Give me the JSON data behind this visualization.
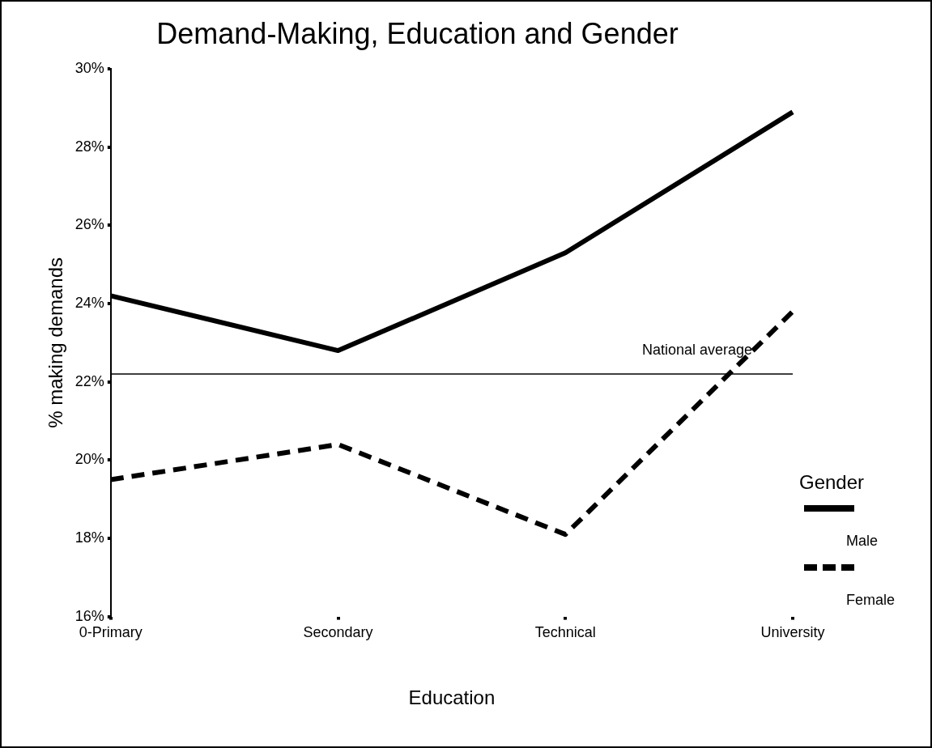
{
  "chart_data": {
    "type": "line",
    "title": "Demand-Making, Education and Gender",
    "xlabel": "Education",
    "ylabel": "% making demands",
    "legend_title": "Gender",
    "categories": [
      "0-Primary",
      "Secondary",
      "Technical",
      "University"
    ],
    "series": [
      {
        "name": "Male",
        "color": "#000000",
        "line_style": "solid",
        "values": [
          24.2,
          22.8,
          25.3,
          28.9
        ]
      },
      {
        "name": "Female",
        "color": "#000000",
        "line_style": "dashed",
        "values": [
          19.5,
          20.4,
          18.1,
          23.8
        ]
      }
    ],
    "ylim": [
      16,
      30
    ],
    "yticks": [
      {
        "value": 16,
        "label": "16%"
      },
      {
        "value": 18,
        "label": "18%"
      },
      {
        "value": 20,
        "label": "20%"
      },
      {
        "value": 22,
        "label": "22%"
      },
      {
        "value": 24,
        "label": "24%"
      },
      {
        "value": 26,
        "label": "26%"
      },
      {
        "value": 28,
        "label": "28%"
      },
      {
        "value": 30,
        "label": "30%"
      }
    ],
    "ref_lines": [
      {
        "axis": "y",
        "value": 22.2,
        "label": "National average",
        "color": "#000000"
      }
    ],
    "grid": false,
    "legend": "right",
    "marker": "none"
  }
}
